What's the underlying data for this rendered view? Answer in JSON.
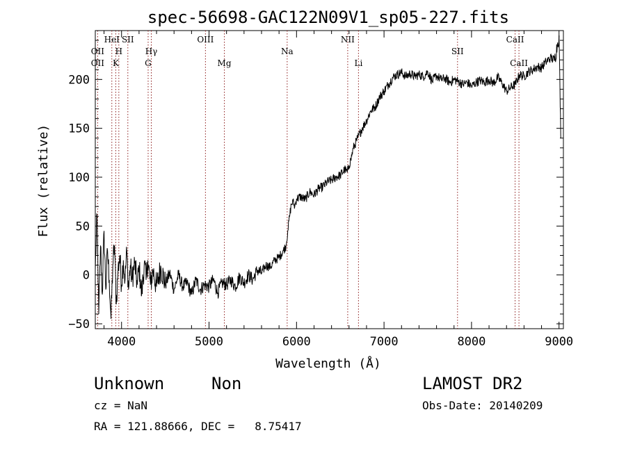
{
  "chart_data": {
    "type": "line",
    "title": "spec-56698-GAC122N09V1_sp05-227.fits",
    "xlabel": "Wavelength (Å)",
    "ylabel": "Flux (relative)",
    "xlim": [
      3700,
      9050
    ],
    "ylim": [
      -55,
      250
    ],
    "xticks": [
      4000,
      5000,
      6000,
      7000,
      8000,
      9000
    ],
    "yticks": [
      -50,
      0,
      50,
      100,
      150,
      200
    ],
    "grid": false,
    "series": [
      {
        "color": "#000000",
        "points": [
          [
            3700,
            5
          ],
          [
            3720,
            60
          ],
          [
            3740,
            -40
          ],
          [
            3760,
            30
          ],
          [
            3780,
            -20
          ],
          [
            3800,
            45
          ],
          [
            3820,
            -15
          ],
          [
            3840,
            25
          ],
          [
            3860,
            -5
          ],
          [
            3880,
            -45
          ],
          [
            3900,
            10
          ],
          [
            3920,
            30
          ],
          [
            3940,
            -30
          ],
          [
            3960,
            5
          ],
          [
            3980,
            20
          ],
          [
            4000,
            -10
          ],
          [
            4020,
            15
          ],
          [
            4040,
            -5
          ],
          [
            4060,
            25
          ],
          [
            4080,
            -15
          ],
          [
            4100,
            10
          ],
          [
            4120,
            -5
          ],
          [
            4150,
            12
          ],
          [
            4180,
            -10
          ],
          [
            4200,
            8
          ],
          [
            4230,
            -20
          ],
          [
            4260,
            12
          ],
          [
            4280,
            -5
          ],
          [
            4300,
            15
          ],
          [
            4330,
            -10
          ],
          [
            4360,
            5
          ],
          [
            4400,
            -12
          ],
          [
            4450,
            8
          ],
          [
            4500,
            -10
          ],
          [
            4550,
            2
          ],
          [
            4600,
            -15
          ],
          [
            4650,
            0
          ],
          [
            4700,
            -12
          ],
          [
            4750,
            -8
          ],
          [
            4800,
            -20
          ],
          [
            4850,
            -5
          ],
          [
            4900,
            -15
          ],
          [
            4950,
            -10
          ],
          [
            5000,
            -12
          ],
          [
            5050,
            -5
          ],
          [
            5100,
            -18
          ],
          [
            5150,
            -8
          ],
          [
            5200,
            -10
          ],
          [
            5250,
            -5
          ],
          [
            5300,
            -12
          ],
          [
            5350,
            -2
          ],
          [
            5400,
            -8
          ],
          [
            5450,
            0
          ],
          [
            5500,
            -5
          ],
          [
            5550,
            5
          ],
          [
            5600,
            2
          ],
          [
            5650,
            10
          ],
          [
            5700,
            8
          ],
          [
            5750,
            15
          ],
          [
            5800,
            18
          ],
          [
            5850,
            25
          ],
          [
            5880,
            30
          ],
          [
            5900,
            45
          ],
          [
            5920,
            60
          ],
          [
            5940,
            72
          ],
          [
            5960,
            75
          ],
          [
            5980,
            70
          ],
          [
            6000,
            78
          ],
          [
            6050,
            80
          ],
          [
            6100,
            77
          ],
          [
            6150,
            85
          ],
          [
            6200,
            82
          ],
          [
            6250,
            88
          ],
          [
            6300,
            90
          ],
          [
            6350,
            95
          ],
          [
            6400,
            97
          ],
          [
            6450,
            100
          ],
          [
            6500,
            102
          ],
          [
            6550,
            108
          ],
          [
            6580,
            105
          ],
          [
            6600,
            112
          ],
          [
            6620,
            118
          ],
          [
            6650,
            130
          ],
          [
            6700,
            140
          ],
          [
            6750,
            150
          ],
          [
            6800,
            158
          ],
          [
            6850,
            168
          ],
          [
            6900,
            172
          ],
          [
            6950,
            182
          ],
          [
            7000,
            188
          ],
          [
            7050,
            195
          ],
          [
            7100,
            202
          ],
          [
            7150,
            205
          ],
          [
            7200,
            207
          ],
          [
            7250,
            203
          ],
          [
            7300,
            206
          ],
          [
            7350,
            203
          ],
          [
            7400,
            205
          ],
          [
            7450,
            203
          ],
          [
            7500,
            208
          ],
          [
            7550,
            198
          ],
          [
            7600,
            204
          ],
          [
            7650,
            200
          ],
          [
            7700,
            201
          ],
          [
            7750,
            197
          ],
          [
            7800,
            200
          ],
          [
            7850,
            198
          ],
          [
            7900,
            195
          ],
          [
            7950,
            197
          ],
          [
            8000,
            193
          ],
          [
            8050,
            197
          ],
          [
            8100,
            199
          ],
          [
            8150,
            197
          ],
          [
            8200,
            200
          ],
          [
            8250,
            196
          ],
          [
            8300,
            202
          ],
          [
            8350,
            196
          ],
          [
            8400,
            188
          ],
          [
            8450,
            192
          ],
          [
            8500,
            195
          ],
          [
            8550,
            205
          ],
          [
            8600,
            203
          ],
          [
            8650,
            208
          ],
          [
            8700,
            210
          ],
          [
            8750,
            213
          ],
          [
            8800,
            212
          ],
          [
            8850,
            218
          ],
          [
            8900,
            222
          ],
          [
            8950,
            220
          ],
          [
            8980,
            235
          ],
          [
            9000,
            245
          ],
          [
            9010,
            195
          ],
          [
            9020,
            140
          ]
        ]
      }
    ],
    "lines": [
      {
        "x": 3727,
        "label": "OII",
        "row": 2
      },
      {
        "x": 3727,
        "label": "OII",
        "row": 3
      },
      {
        "x": 3889,
        "label": "HeI",
        "row": 1
      },
      {
        "x": 3934,
        "label": "K",
        "row": 3
      },
      {
        "x": 3969,
        "label": "H",
        "row": 2
      },
      {
        "x": 4072,
        "label": "SII",
        "row": 1
      },
      {
        "x": 4304,
        "label": "G",
        "row": 3
      },
      {
        "x": 4340,
        "label": "Hγ",
        "row": 2
      },
      {
        "x": 4959,
        "label": "OIII",
        "row": 1
      },
      {
        "x": 5175,
        "label": "Mg",
        "row": 3
      },
      {
        "x": 5893,
        "label": "Na",
        "row": 2
      },
      {
        "x": 6585,
        "label": "NII",
        "row": 1
      },
      {
        "x": 6708,
        "label": "Li",
        "row": 3
      },
      {
        "x": 7840,
        "label": "SII",
        "row": 2
      },
      {
        "x": 8498,
        "label": "CaII",
        "row": 1
      },
      {
        "x": 8542,
        "label": "CaII",
        "row": 3
      }
    ]
  },
  "info": {
    "object": "Unknown",
    "subclass": "Non",
    "survey": "LAMOST DR2",
    "redshift": "cz = NaN",
    "obs_date": "Obs-Date: 20140209",
    "coords": "RA = 121.88666, DEC =   8.75417"
  }
}
